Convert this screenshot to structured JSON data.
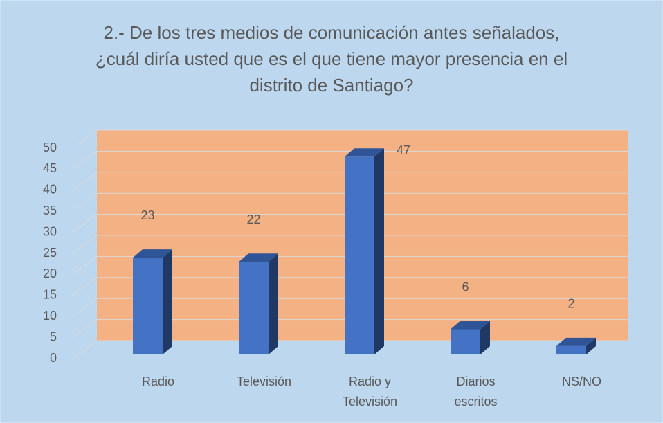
{
  "chart_data": {
    "type": "bar",
    "title": "2.- De los tres medios de comunicación antes señalados, ¿cuál diría usted que es el que tiene mayor presencia en el distrito de Santiago?",
    "categories": [
      "Radio",
      "Televisión",
      "Radio y Televisión",
      "Diarios escritos",
      "NS/NO"
    ],
    "values": [
      23,
      22,
      47,
      6,
      2
    ],
    "color": "#4472c4",
    "ylim": [
      0,
      50
    ],
    "yticks": [
      0,
      5,
      10,
      15,
      20,
      25,
      30,
      35,
      40,
      45,
      50
    ],
    "grid": true
  }
}
